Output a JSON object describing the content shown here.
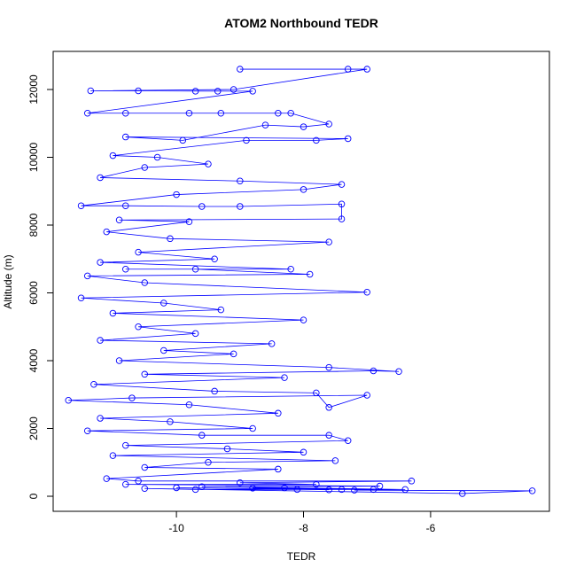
{
  "chart_data": {
    "type": "line",
    "title": "ATOM2 Northbound TEDR",
    "x_label": "TEDR",
    "y_label": "Altitude (m)",
    "color": "#0000ff",
    "markers": true,
    "x": [
      -9.0,
      -7.3,
      -7.0,
      -9.1,
      -11.35,
      -10.6,
      -9.7,
      -9.35,
      -8.8,
      -11.4,
      -10.8,
      -9.8,
      -9.3,
      -8.4,
      -8.2,
      -7.6,
      -8.0,
      -8.6,
      -9.9,
      -10.8,
      -7.3,
      -7.8,
      -8.9,
      -11.0,
      -10.3,
      -9.5,
      -10.5,
      -11.2,
      -9.0,
      -7.4,
      -8.0,
      -10.0,
      -11.5,
      -10.8,
      -9.6,
      -9.0,
      -7.4,
      -7.4,
      -10.9,
      -9.8,
      -11.1,
      -10.1,
      -7.6,
      -10.6,
      -9.4,
      -11.2,
      -8.2,
      -10.8,
      -9.7,
      -7.9,
      -11.4,
      -10.5,
      -7.0,
      -11.5,
      -10.2,
      -9.3,
      -11.0,
      -8.0,
      -10.6,
      -9.7,
      -11.2,
      -8.5,
      -10.2,
      -9.1,
      -10.9,
      -7.6,
      -6.5,
      -6.9,
      -10.5,
      -8.3,
      -11.3,
      -9.4,
      -7.8,
      -7.6,
      -7.0,
      -10.7,
      -11.7,
      -9.8,
      -8.4,
      -11.2,
      -10.1,
      -8.8,
      -11.4,
      -9.6,
      -7.6,
      -7.3,
      -10.8,
      -9.2,
      -8.0,
      -11.0,
      -7.5,
      -9.5,
      -10.5,
      -8.4,
      -11.1,
      -10.6,
      -6.3,
      -9.0,
      -7.8,
      -10.8,
      -6.8,
      -9.6,
      -8.3,
      -6.4,
      -7.2,
      -4.4,
      -5.5,
      -10.5,
      -9.7,
      -8.1,
      -7.4,
      -6.9,
      -8.8,
      -7.6,
      -10.0
    ],
    "values": [
      12600,
      12600,
      12600,
      12000,
      11960,
      11960,
      11950,
      11950,
      11950,
      11300,
      11300,
      11300,
      11300,
      11300,
      11300,
      10980,
      10900,
      10950,
      10500,
      10600,
      10550,
      10500,
      10500,
      10050,
      10000,
      9800,
      9700,
      9400,
      9300,
      9200,
      9050,
      8900,
      8570,
      8570,
      8550,
      8550,
      8620,
      8180,
      8150,
      8100,
      7800,
      7600,
      7500,
      7200,
      7000,
      6900,
      6700,
      6700,
      6700,
      6550,
      6500,
      6300,
      6020,
      5850,
      5700,
      5500,
      5400,
      5200,
      5000,
      4800,
      4600,
      4500,
      4300,
      4200,
      4000,
      3800,
      3680,
      3700,
      3600,
      3500,
      3300,
      3100,
      3050,
      2620,
      2980,
      2900,
      2830,
      2700,
      2450,
      2300,
      2200,
      2000,
      1930,
      1800,
      1800,
      1640,
      1500,
      1400,
      1300,
      1200,
      1050,
      1000,
      850,
      800,
      520,
      450,
      450,
      400,
      350,
      350,
      300,
      280,
      250,
      200,
      180,
      160,
      80,
      230,
      200,
      200,
      200,
      200,
      240,
      190,
      250
    ],
    "xlim": [
      -11.94,
      -4.13
    ],
    "ylim": [
      -444,
      13124
    ],
    "xticks": [
      -10,
      -8,
      -6
    ],
    "yticks": [
      0,
      2000,
      4000,
      6000,
      8000,
      10000,
      12000
    ]
  }
}
